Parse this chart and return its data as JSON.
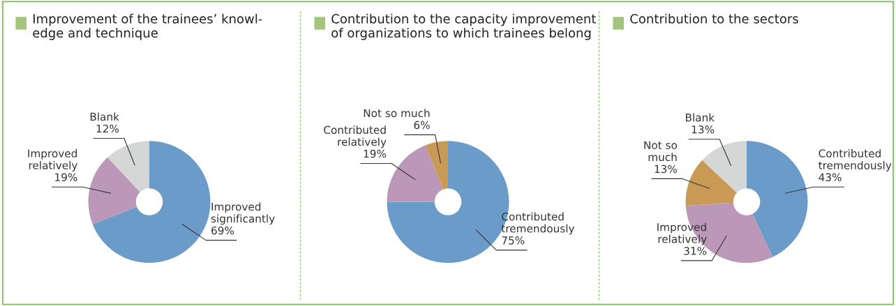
{
  "chart_data": [
    {
      "type": "donut",
      "title": "Improvement of the trainees’ knowl-\nedge and technique",
      "categories": [
        "Improved\nsignificantly",
        "Improved\nrelatively",
        "Blank"
      ],
      "values": [
        69,
        19,
        12
      ],
      "value_labels": [
        "69%",
        "19%",
        "12%"
      ],
      "colors": [
        "#6b9bc8",
        "#bb97b8",
        "#d5d6d6"
      ]
    },
    {
      "type": "donut",
      "title": "Contribution to the capacity improvement\nof organizations to which trainees belong",
      "categories": [
        "Contributed\ntremendously",
        "Contributed\nrelatively",
        "Not so much"
      ],
      "values": [
        75,
        19,
        6
      ],
      "value_labels": [
        "75%",
        "19%",
        "6%"
      ],
      "colors": [
        "#6b9bc8",
        "#bb97b8",
        "#c89a55"
      ]
    },
    {
      "type": "donut",
      "title": "Contribution to the sectors",
      "categories": [
        "Contributed\ntremendously",
        "Improved\nrelatively",
        "Not so\nmuch",
        "Blank"
      ],
      "values": [
        43,
        31,
        13,
        13
      ],
      "value_labels": [
        "43%",
        "31%",
        "13%",
        "13%"
      ],
      "colors": [
        "#6b9bc8",
        "#bb97b8",
        "#c89a55",
        "#d5d6d6"
      ]
    }
  ]
}
